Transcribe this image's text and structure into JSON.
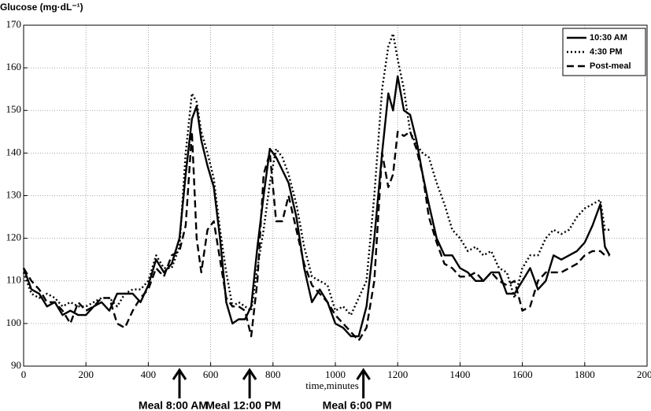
{
  "chart_data": {
    "type": "line",
    "ylabel": "Glucose (mg·dL⁻¹)",
    "xlabel": "time,minutes",
    "x": [
      0,
      25,
      50,
      75,
      100,
      125,
      150,
      175,
      200,
      225,
      250,
      275,
      300,
      325,
      350,
      375,
      400,
      425,
      450,
      475,
      500,
      520,
      540,
      555,
      570,
      590,
      610,
      630,
      650,
      670,
      690,
      710,
      730,
      750,
      770,
      790,
      810,
      830,
      850,
      875,
      900,
      925,
      950,
      975,
      1000,
      1025,
      1050,
      1075,
      1100,
      1125,
      1150,
      1170,
      1185,
      1200,
      1220,
      1240,
      1260,
      1280,
      1300,
      1325,
      1350,
      1375,
      1400,
      1425,
      1450,
      1475,
      1500,
      1525,
      1550,
      1575,
      1600,
      1625,
      1650,
      1675,
      1700,
      1725,
      1750,
      1775,
      1800,
      1825,
      1850,
      1865,
      1880
    ],
    "series": [
      {
        "name": "10:30 AM",
        "color": "#000000",
        "linestyle": "solid",
        "values": [
          113,
          108,
          107,
          104,
          105,
          102,
          103,
          102,
          102,
          104,
          105,
          103,
          107,
          107,
          107,
          105,
          109,
          115,
          112,
          114,
          120,
          135,
          148,
          151,
          143,
          137,
          132,
          120,
          105,
          100,
          101,
          101,
          104,
          118,
          130,
          141,
          139,
          136,
          133,
          125,
          113,
          105,
          108,
          105,
          100,
          99,
          97,
          97,
          104,
          120,
          140,
          154,
          150,
          158,
          150,
          149,
          143,
          135,
          128,
          120,
          116,
          116,
          113,
          112,
          110,
          110,
          112,
          112,
          107,
          107,
          110,
          113,
          108,
          110,
          116,
          115,
          116,
          117,
          119,
          123,
          128,
          118,
          116
        ]
      },
      {
        "name": "4:30 PM",
        "color": "#000000",
        "linestyle": "dotted",
        "values": [
          112,
          107,
          106,
          107,
          106,
          104,
          105,
          104,
          104,
          105,
          106,
          106,
          104,
          107,
          108,
          108,
          110,
          116,
          113,
          113,
          118,
          140,
          154,
          152,
          145,
          140,
          134,
          122,
          112,
          104,
          105,
          104,
          103,
          113,
          122,
          133,
          141,
          139,
          135,
          128,
          118,
          111,
          110,
          109,
          103,
          104,
          102,
          106,
          110,
          130,
          155,
          165,
          168,
          162,
          155,
          145,
          142,
          140,
          139,
          133,
          128,
          122,
          120,
          117,
          118,
          116,
          117,
          113,
          112,
          106,
          113,
          116,
          116,
          120,
          122,
          121,
          122,
          125,
          127,
          128,
          129,
          122,
          122
        ]
      },
      {
        "name": "Post-meal",
        "color": "#000000",
        "linestyle": "dashed",
        "values": [
          113,
          110,
          108,
          105,
          105,
          103,
          100,
          105,
          103,
          104,
          106,
          106,
          100,
          99,
          103,
          106,
          108,
          113,
          111,
          116,
          117,
          123,
          145,
          120,
          112,
          122,
          124,
          115,
          106,
          104,
          104,
          103,
          97,
          110,
          135,
          140,
          124,
          124,
          130,
          122,
          114,
          109,
          107,
          105,
          102,
          100,
          98,
          96,
          99,
          110,
          140,
          132,
          135,
          145,
          144,
          145,
          141,
          135,
          125,
          119,
          114,
          113,
          111,
          111,
          112,
          110,
          112,
          110,
          109,
          110,
          103,
          104,
          110,
          112,
          112,
          112,
          113,
          114,
          116,
          117,
          117,
          116,
          116
        ]
      }
    ],
    "xlim": [
      0,
      2000
    ],
    "xticks": [
      0,
      200,
      400,
      600,
      800,
      1000,
      1200,
      1400,
      1600,
      1800,
      2000
    ],
    "ylim": [
      90,
      170
    ],
    "yticks": [
      90,
      100,
      110,
      120,
      130,
      140,
      150,
      160,
      170
    ],
    "grid": true,
    "legend": "upper right",
    "annotations": [
      {
        "text": "Meal 8:00 AM",
        "x": 500
      },
      {
        "text": "Meal 12:00 PM",
        "x": 725
      },
      {
        "text": "Meal 6:00 PM",
        "x": 1090
      }
    ]
  }
}
